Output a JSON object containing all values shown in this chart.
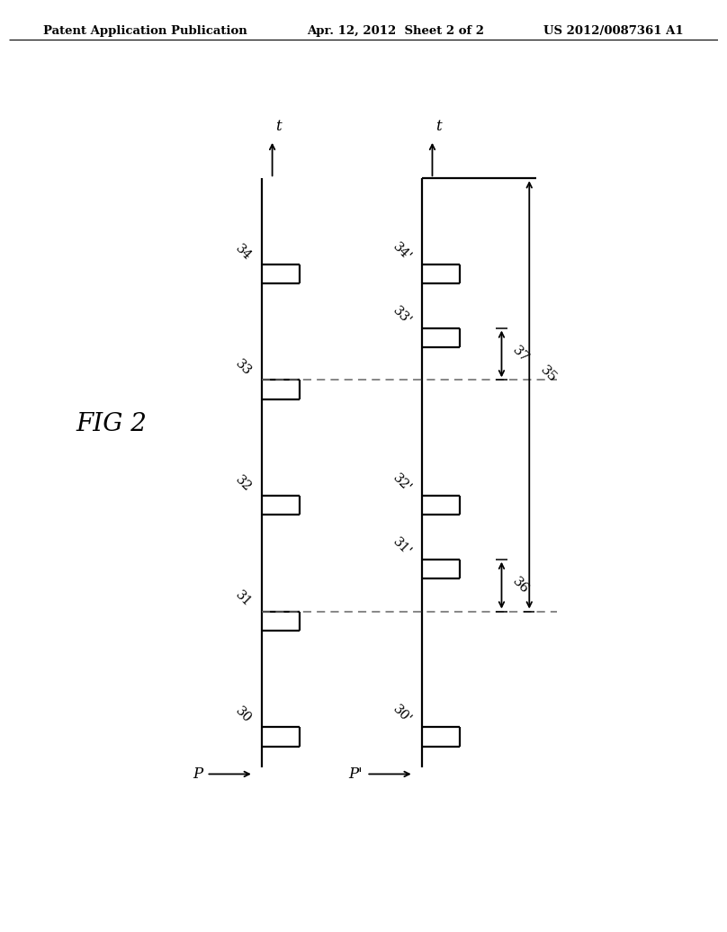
{
  "bg_color": "#ffffff",
  "line_color": "#000000",
  "dash_color": "#666666",
  "header_left": "Patent Application Publication",
  "header_mid": "Apr. 12, 2012  Sheet 2 of 2",
  "header_right": "US 2012/0087361 A1",
  "fig_label": "FIG 2",
  "signal_P_label": "P",
  "signal_P2_label": "P'",
  "label_30": "30",
  "label_31": "31",
  "label_32": "32",
  "label_33": "33",
  "label_34": "34",
  "label_30p": "30'",
  "label_31p": "31'",
  "label_32p": "32'",
  "label_33p": "33'",
  "label_34p": "34'",
  "label_35": "35",
  "label_36": "36",
  "label_37": "37",
  "label_t": "t",
  "label_t2": "t"
}
